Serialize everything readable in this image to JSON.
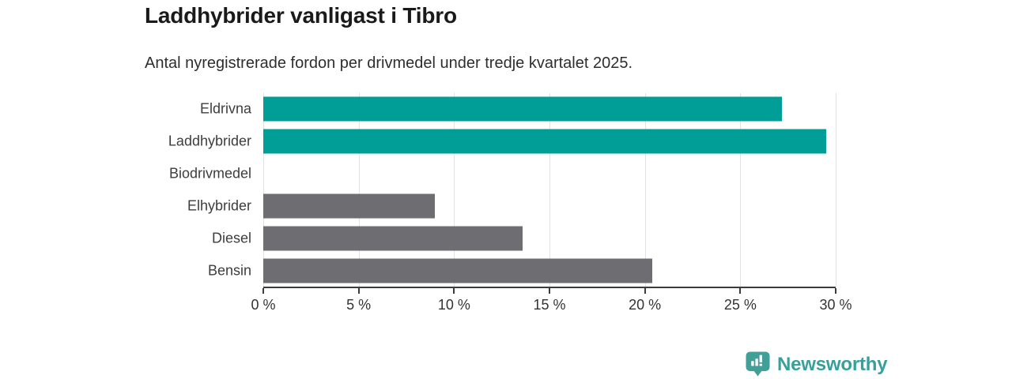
{
  "chart_data": {
    "type": "bar",
    "orientation": "horizontal",
    "title": "Laddhybrider vanligast i Tibro",
    "subtitle": "Antal nyregistrerade fordon per drivmedel under tredje kvartalet 2025.",
    "categories": [
      "Eldrivna",
      "Laddhybrider",
      "Biodrivmedel",
      "Elhybrider",
      "Diesel",
      "Bensin"
    ],
    "values": [
      27.2,
      29.5,
      0,
      9.0,
      13.6,
      20.4
    ],
    "unit": "%",
    "bar_colors": [
      "#019e97",
      "#019e97",
      "#6e6e72",
      "#6e6e72",
      "#6e6e72",
      "#6e6e72"
    ],
    "xlabel": "",
    "ylabel": "",
    "xlim": [
      0,
      30
    ],
    "x_ticks": [
      0,
      5,
      10,
      15,
      20,
      25,
      30
    ],
    "x_tick_labels": [
      "0 %",
      "5 %",
      "10 %",
      "15 %",
      "20 %",
      "25 %",
      "30 %"
    ],
    "grid": "vertical-only",
    "legend": "none",
    "colors": {
      "highlight": "#019e97",
      "default": "#6e6e72",
      "gridline": "#e2e2e2",
      "axis": "#3c3c3c",
      "tick_text": "#333333"
    }
  },
  "footer": {
    "brand": "Newsworthy",
    "brand_color": "#36a09a"
  }
}
